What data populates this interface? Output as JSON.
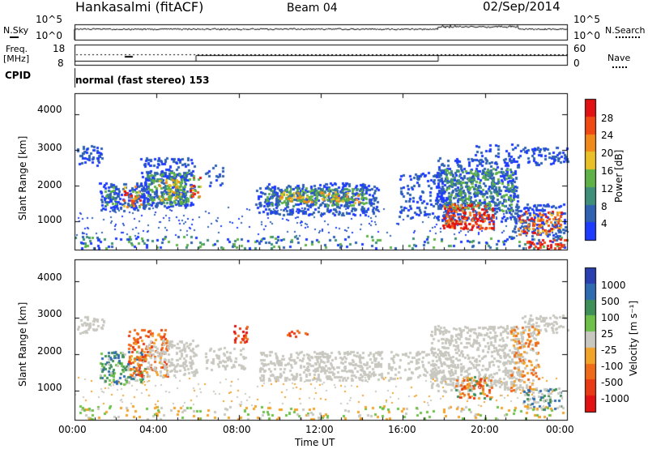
{
  "header": {
    "title": "Hankasalmi (fitACF)",
    "beam": "Beam 04",
    "date": "02/Sep/2014"
  },
  "top_panels": {
    "nsky_label": "N.Sky",
    "nsearch_label": "N.Search",
    "nsky_tick_top": "10^5",
    "nsky_tick_bottom": "10^0",
    "freq_label_line1": "Freq.",
    "freq_label_line2": "[MHz]",
    "freq_tick_top": "18",
    "freq_tick_bottom": "8",
    "nave_label": "Nave",
    "nave_tick_top": "60",
    "nave_tick_bottom": "0",
    "cpid_label": "CPID",
    "cpid_text": "normal (fast stereo) 153",
    "colors": {
      "trace": "#000000"
    }
  },
  "chart_data": [
    {
      "type": "heatmap",
      "name": "power",
      "ylabel": "Slant Range [km]",
      "yticks": [
        "1000",
        "2000",
        "3000",
        "4000"
      ],
      "ylim": [
        200,
        4600
      ],
      "xlim": [
        0,
        24
      ],
      "colorbar": {
        "label": "Power [dB]",
        "ticks": [
          "4",
          "8",
          "12",
          "16",
          "20",
          "24",
          "28"
        ],
        "colors": [
          "#1e3cff",
          "#2f62b0",
          "#3f8f7a",
          "#5fb247",
          "#e9c028",
          "#f08a1a",
          "#ef4a14",
          "#e31212"
        ]
      }
    },
    {
      "type": "heatmap",
      "name": "velocity",
      "ylabel": "Slant Range [km]",
      "yticks": [
        "1000",
        "2000",
        "3000",
        "4000"
      ],
      "ylim": [
        200,
        4600
      ],
      "xlim": [
        0,
        24
      ],
      "xlabel": "Time UT",
      "xticks": [
        "00:00",
        "04:00",
        "08:00",
        "12:00",
        "16:00",
        "20:00",
        "00:00"
      ],
      "colorbar": {
        "label": "Velocity [m s⁻¹]",
        "ticks": [
          "1000",
          "500",
          "100",
          "25",
          "-25",
          "-100",
          "-500",
          "-1000"
        ],
        "colors": [
          "#2a3fb0",
          "#2f6bb0",
          "#3f8f58",
          "#6dc04a",
          "#c8c8c0",
          "#f2a32a",
          "#ef6b1a",
          "#e83a14",
          "#e31212"
        ]
      }
    }
  ]
}
